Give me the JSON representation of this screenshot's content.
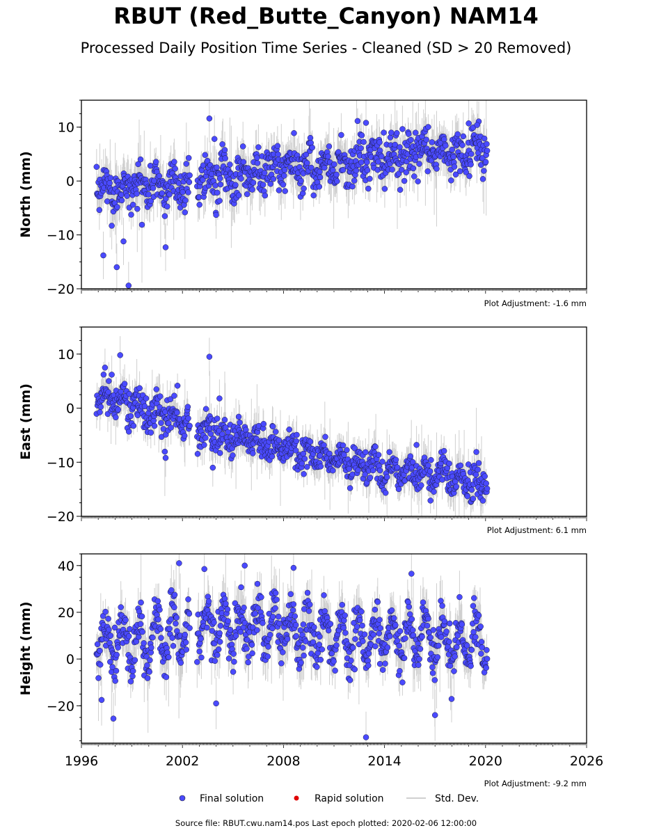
{
  "header": {
    "title": "RBUT (Red_Butte_Canyon) NAM14",
    "subtitle": "Processed Daily Position Time Series - Cleaned (SD > 20 Removed)"
  },
  "chart_data": [
    {
      "type": "scatter",
      "ylabel": "North (mm)",
      "xlim": [
        1996,
        2026
      ],
      "ylim": [
        -20,
        15
      ],
      "yticks": [
        -20,
        -10,
        0,
        10
      ],
      "adjustment": "Plot Adjustment: -1.6 mm",
      "trend": {
        "x": [
          1996.9,
          2002.0,
          2002.9,
          2008.0,
          2011.0,
          2014.0,
          2016.5,
          2018.5,
          2020.1
        ],
        "y": [
          -1.5,
          -0.5,
          0.0,
          2.5,
          3.0,
          4.5,
          5.5,
          5.0,
          6.0
        ]
      },
      "seasonal_amp": 1.5,
      "scatter_sd": 2.0,
      "outliers": [
        [
          1997.3,
          -13.8
        ],
        [
          1998.1,
          -16.0
        ],
        [
          1998.5,
          -11.2
        ],
        [
          1998.8,
          -19.4
        ],
        [
          2001.0,
          -12.3
        ],
        [
          2003.6,
          11.6
        ],
        [
          2003.9,
          7.8
        ],
        [
          2004.0,
          -6.3
        ],
        [
          2012.9,
          10.8
        ],
        [
          2019.0,
          10.7
        ],
        [
          2019.5,
          10.4
        ],
        [
          1997.8,
          -8.3
        ]
      ]
    },
    {
      "type": "scatter",
      "ylabel": "East (mm)",
      "xlim": [
        1996,
        2026
      ],
      "ylim": [
        -20,
        15
      ],
      "yticks": [
        -20,
        -10,
        0,
        10
      ],
      "adjustment": "Plot Adjustment: 6.1 mm",
      "trend": {
        "x": [
          1996.9,
          1998.0,
          2000.0,
          2002.0,
          2002.9,
          2005.0,
          2008.0,
          2011.0,
          2014.0,
          2017.0,
          2020.1
        ],
        "y": [
          2.5,
          1.5,
          -1.0,
          -2.5,
          -4.0,
          -5.5,
          -7.5,
          -9.5,
          -11.5,
          -12.5,
          -14.0
        ]
      },
      "seasonal_amp": 1.2,
      "scatter_sd": 1.6,
      "outliers": [
        [
          1998.3,
          9.8
        ],
        [
          2003.6,
          9.5
        ],
        [
          2004.2,
          1.8
        ],
        [
          2001.0,
          -9.2
        ],
        [
          2003.8,
          -11.0
        ],
        [
          2015.9,
          -6.8
        ],
        [
          1997.4,
          7.5
        ],
        [
          1997.8,
          6.2
        ]
      ]
    },
    {
      "type": "scatter",
      "ylabel": "Height (mm)",
      "xlim": [
        1996,
        2026
      ],
      "ylim": [
        -36,
        45
      ],
      "yticks": [
        -20,
        0,
        20,
        40
      ],
      "xticks": [
        1996,
        2002,
        2008,
        2014,
        2020,
        2026
      ],
      "adjustment": "Plot Adjustment: -9.2 mm",
      "trend": {
        "x": [
          1996.9,
          2002.0,
          2003.0,
          2008.0,
          2012.0,
          2016.0,
          2020.1
        ],
        "y": [
          6.0,
          12.0,
          15.0,
          13.0,
          8.0,
          9.0,
          6.0
        ]
      },
      "seasonal_amp": 9.0,
      "scatter_sd": 5.0,
      "outliers": [
        [
          2001.8,
          41.0
        ],
        [
          2003.3,
          38.5
        ],
        [
          2005.7,
          40.0
        ],
        [
          2008.6,
          39.0
        ],
        [
          2015.6,
          36.5
        ],
        [
          2012.9,
          -33.5
        ],
        [
          1997.9,
          -25.5
        ],
        [
          2004.0,
          -19.0
        ],
        [
          2017.0,
          -24.0
        ],
        [
          1997.2,
          -17.5
        ]
      ]
    }
  ],
  "legend": {
    "final": "Final solution",
    "rapid": "Rapid solution",
    "std": "Std. Dev.",
    "final_color": "#4a4aff",
    "rapid_color": "#e00000",
    "std_color": "#c0c0c0"
  },
  "footer": "Source file: RBUT.cwu.nam14.pos  Last epoch plotted: 2020-02-06 12:00:00"
}
